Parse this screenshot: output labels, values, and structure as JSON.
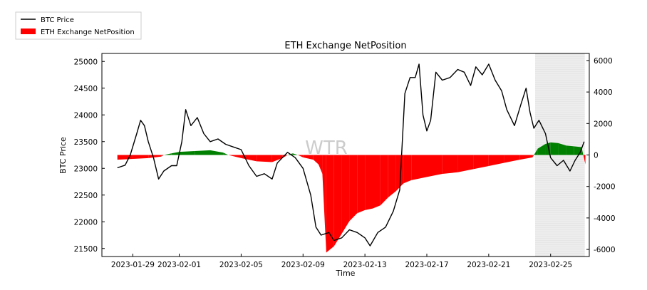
{
  "chart_data": {
    "type": "line",
    "title": "ETH Exchange NetPosition",
    "xlabel": "Time",
    "ylabel": "BTC Price",
    "y2label": "",
    "watermark": "WTR",
    "xlim": [
      "2023-01-27",
      "2023-02-27T12:00"
    ],
    "ylim": [
      21350,
      25150
    ],
    "y2lim": [
      -6450,
      6450
    ],
    "x_ticks": [
      "2023-01-29",
      "2023-02-01",
      "2023-02-05",
      "2023-02-09",
      "2023-02-13",
      "2023-02-17",
      "2023-02-21",
      "2023-02-25"
    ],
    "y_ticks": [
      21500,
      22000,
      22500,
      23000,
      23500,
      24000,
      24500,
      25000
    ],
    "y2_ticks": [
      -6000,
      -4000,
      -2000,
      0,
      2000,
      4000,
      6000
    ],
    "grid": false,
    "legend_position": "top-left",
    "highlight_region": [
      "2023-02-24",
      "2023-02-27T05:00"
    ],
    "series": [
      {
        "name": "BTC Price",
        "axis": "left",
        "color": "#000000",
        "points": [
          [
            "2023-01-28T00:00",
            23010
          ],
          [
            "2023-01-28T12:00",
            23060
          ],
          [
            "2023-01-28T20:00",
            23250
          ],
          [
            "2023-01-29T06:00",
            23650
          ],
          [
            "2023-01-29T12:00",
            23900
          ],
          [
            "2023-01-29T18:00",
            23800
          ],
          [
            "2023-01-30T00:00",
            23500
          ],
          [
            "2023-01-30T08:00",
            23200
          ],
          [
            "2023-01-30T16:00",
            22800
          ],
          [
            "2023-01-31T00:00",
            22950
          ],
          [
            "2023-01-31T12:00",
            23050
          ],
          [
            "2023-01-31T20:00",
            23050
          ],
          [
            "2023-02-01T04:00",
            23500
          ],
          [
            "2023-02-01T10:00",
            24100
          ],
          [
            "2023-02-01T18:00",
            23800
          ],
          [
            "2023-02-02T04:00",
            23950
          ],
          [
            "2023-02-02T14:00",
            23650
          ],
          [
            "2023-02-03T00:00",
            23500
          ],
          [
            "2023-02-03T12:00",
            23550
          ],
          [
            "2023-02-04T00:00",
            23450
          ],
          [
            "2023-02-04T12:00",
            23400
          ],
          [
            "2023-02-05T00:00",
            23350
          ],
          [
            "2023-02-05T12:00",
            23050
          ],
          [
            "2023-02-06T00:00",
            22850
          ],
          [
            "2023-02-06T12:00",
            22900
          ],
          [
            "2023-02-07T00:00",
            22800
          ],
          [
            "2023-02-07T08:00",
            23100
          ],
          [
            "2023-02-07T16:00",
            23200
          ],
          [
            "2023-02-08T00:00",
            23300
          ],
          [
            "2023-02-08T12:00",
            23200
          ],
          [
            "2023-02-09T00:00",
            23000
          ],
          [
            "2023-02-09T12:00",
            22500
          ],
          [
            "2023-02-09T20:00",
            21900
          ],
          [
            "2023-02-10T04:00",
            21750
          ],
          [
            "2023-02-10T16:00",
            21800
          ],
          [
            "2023-02-11T00:00",
            21650
          ],
          [
            "2023-02-11T12:00",
            21700
          ],
          [
            "2023-02-12T00:00",
            21850
          ],
          [
            "2023-02-12T12:00",
            21800
          ],
          [
            "2023-02-13T00:00",
            21700
          ],
          [
            "2023-02-13T08:00",
            21550
          ],
          [
            "2023-02-13T20:00",
            21800
          ],
          [
            "2023-02-14T08:00",
            21900
          ],
          [
            "2023-02-14T20:00",
            22200
          ],
          [
            "2023-02-15T06:00",
            22600
          ],
          [
            "2023-02-15T14:00",
            24400
          ],
          [
            "2023-02-15T22:00",
            24700
          ],
          [
            "2023-02-16T06:00",
            24700
          ],
          [
            "2023-02-16T12:00",
            24950
          ],
          [
            "2023-02-16T18:00",
            24000
          ],
          [
            "2023-02-17T00:00",
            23700
          ],
          [
            "2023-02-17T06:00",
            23900
          ],
          [
            "2023-02-17T14:00",
            24800
          ],
          [
            "2023-02-18T00:00",
            24650
          ],
          [
            "2023-02-18T12:00",
            24700
          ],
          [
            "2023-02-19T00:00",
            24850
          ],
          [
            "2023-02-19T10:00",
            24800
          ],
          [
            "2023-02-19T20:00",
            24550
          ],
          [
            "2023-02-20T04:00",
            24900
          ],
          [
            "2023-02-20T14:00",
            24750
          ],
          [
            "2023-02-21T00:00",
            24950
          ],
          [
            "2023-02-21T10:00",
            24650
          ],
          [
            "2023-02-21T20:00",
            24450
          ],
          [
            "2023-02-22T04:00",
            24100
          ],
          [
            "2023-02-22T16:00",
            23800
          ],
          [
            "2023-02-23T02:00",
            24200
          ],
          [
            "2023-02-23T10:00",
            24500
          ],
          [
            "2023-02-23T16:00",
            24050
          ],
          [
            "2023-02-23T22:00",
            23750
          ],
          [
            "2023-02-24T06:00",
            23900
          ],
          [
            "2023-02-24T16:00",
            23650
          ],
          [
            "2023-02-25T00:00",
            23200
          ],
          [
            "2023-02-25T10:00",
            23050
          ],
          [
            "2023-02-25T20:00",
            23150
          ],
          [
            "2023-02-26T06:00",
            22950
          ],
          [
            "2023-02-26T14:00",
            23150
          ],
          [
            "2023-02-26T22:00",
            23300
          ],
          [
            "2023-02-27T04:00",
            23500
          ]
        ]
      },
      {
        "name": "ETH Exchange NetPosition",
        "axis": "right",
        "type": "area",
        "color_positive": "#008000",
        "color_negative": "#ff0000",
        "points": [
          [
            "2023-01-28T00:00",
            -300
          ],
          [
            "2023-01-29T00:00",
            -250
          ],
          [
            "2023-01-30T00:00",
            -200
          ],
          [
            "2023-01-30T20:00",
            -100
          ],
          [
            "2023-01-31T00:00",
            0
          ],
          [
            "2023-01-31T12:00",
            100
          ],
          [
            "2023-02-01T00:00",
            200
          ],
          [
            "2023-02-02T00:00",
            250
          ],
          [
            "2023-02-03T00:00",
            300
          ],
          [
            "2023-02-03T20:00",
            150
          ],
          [
            "2023-02-04T04:00",
            0
          ],
          [
            "2023-02-05T00:00",
            -200
          ],
          [
            "2023-02-06T00:00",
            -400
          ],
          [
            "2023-02-07T00:00",
            -450
          ],
          [
            "2023-02-07T16:00",
            -200
          ],
          [
            "2023-02-08T00:00",
            0
          ],
          [
            "2023-02-08T08:00",
            100
          ],
          [
            "2023-02-08T16:00",
            0
          ],
          [
            "2023-02-09T00:00",
            -150
          ],
          [
            "2023-02-09T16:00",
            -300
          ],
          [
            "2023-02-10T00:00",
            -600
          ],
          [
            "2023-02-10T06:00",
            -1200
          ],
          [
            "2023-02-10T12:00",
            -6200
          ],
          [
            "2023-02-11T00:00",
            -5800
          ],
          [
            "2023-02-11T12:00",
            -5000
          ],
          [
            "2023-02-12T00:00",
            -4200
          ],
          [
            "2023-02-12T12:00",
            -3700
          ],
          [
            "2023-02-13T00:00",
            -3500
          ],
          [
            "2023-02-13T12:00",
            -3400
          ],
          [
            "2023-02-14T00:00",
            -3200
          ],
          [
            "2023-02-14T12:00",
            -2700
          ],
          [
            "2023-02-15T00:00",
            -2300
          ],
          [
            "2023-02-15T12:00",
            -1800
          ],
          [
            "2023-02-16T00:00",
            -1600
          ],
          [
            "2023-02-17T00:00",
            -1400
          ],
          [
            "2023-02-18T00:00",
            -1200
          ],
          [
            "2023-02-19T00:00",
            -1100
          ],
          [
            "2023-02-20T00:00",
            -900
          ],
          [
            "2023-02-21T00:00",
            -700
          ],
          [
            "2023-02-22T00:00",
            -500
          ],
          [
            "2023-02-23T00:00",
            -300
          ],
          [
            "2023-02-23T20:00",
            -150
          ],
          [
            "2023-02-24T04:00",
            400
          ],
          [
            "2023-02-24T16:00",
            700
          ],
          [
            "2023-02-25T00:00",
            800
          ],
          [
            "2023-02-25T12:00",
            750
          ],
          [
            "2023-02-26T00:00",
            600
          ],
          [
            "2023-02-26T12:00",
            550
          ],
          [
            "2023-02-27T00:00",
            500
          ],
          [
            "2023-02-27T06:00",
            -600
          ]
        ]
      }
    ]
  }
}
